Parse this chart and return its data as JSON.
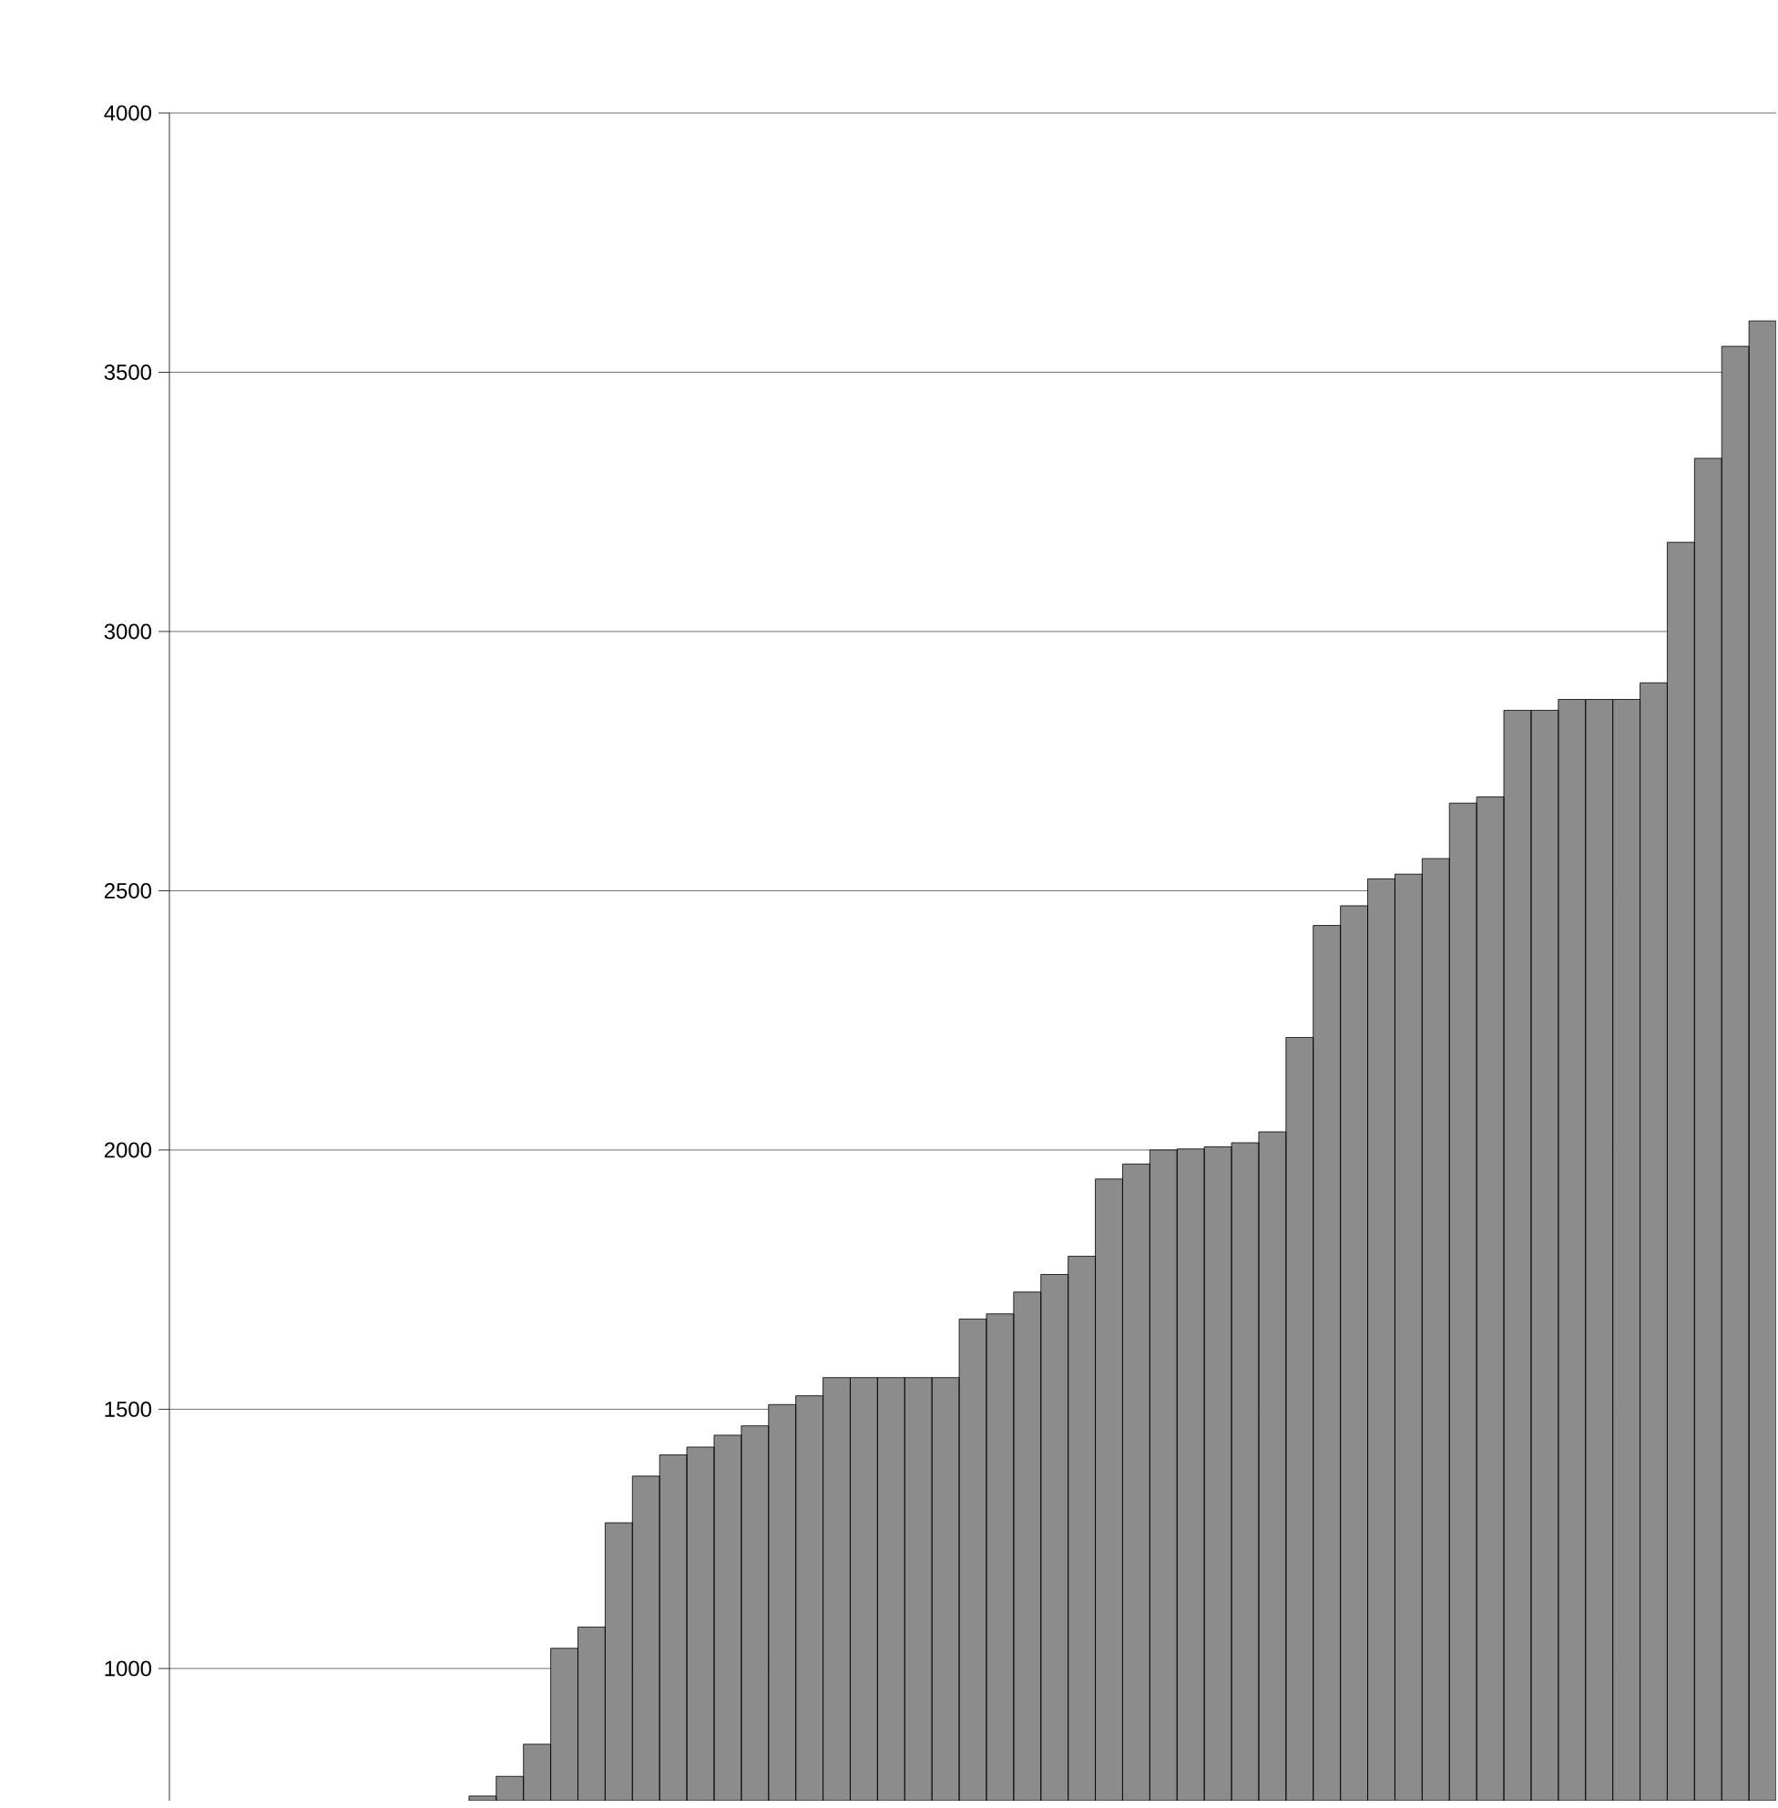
{
  "chart_data": {
    "type": "bar",
    "categories": [
      null,
      null,
      null,
      null,
      null,
      null,
      null,
      null,
      null,
      null,
      null,
      null,
      null,
      null,
      null,
      null,
      null,
      null,
      null,
      null,
      null,
      null,
      null,
      null,
      null,
      null,
      null,
      null,
      null,
      null,
      null,
      null,
      null,
      null,
      null,
      null,
      null,
      null,
      null,
      null,
      null,
      null,
      null,
      null,
      null,
      null,
      null,
      null,
      null,
      null,
      null,
      null,
      null,
      null,
      null,
      null,
      null,
      null,
      null
    ],
    "values": [
      null,
      null,
      null,
      null,
      null,
      null,
      null,
      null,
      null,
      null,
      null,
      754,
      792,
      854,
      1039,
      1080,
      1281,
      1371,
      1412,
      1427,
      1450,
      1468,
      1509,
      1526,
      1561,
      1561,
      1561,
      1561,
      1561,
      1674,
      1684,
      1726,
      1760,
      1795,
      1944,
      1973,
      2000,
      2002,
      2006,
      2014,
      2035,
      2217,
      2433,
      2471,
      2523,
      2532,
      2562,
      2669,
      2681,
      2848,
      2848,
      2869,
      2869,
      2869,
      2901,
      3172,
      3334,
      3550,
      3599
    ],
    "color": "#8c8c8c",
    "ylim": [
      745,
      4000
    ],
    "yticks": [
      1000,
      1500,
      2000,
      2500,
      3000,
      3500,
      4000
    ],
    "grid": "y"
  }
}
